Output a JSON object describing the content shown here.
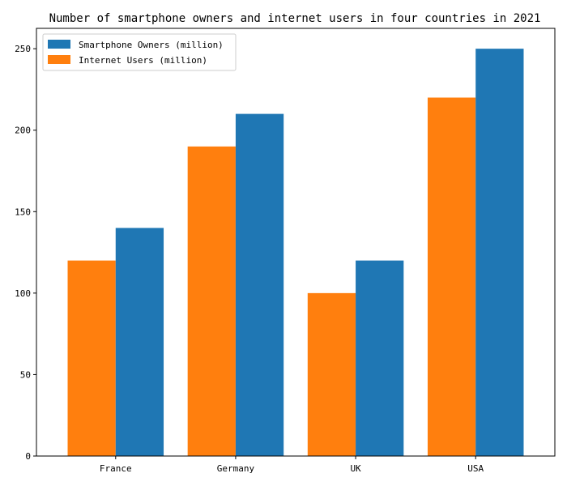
{
  "chart_data": {
    "type": "bar",
    "title": "Number of smartphone owners and internet users in four countries in 2021",
    "xlabel": "",
    "ylabel": "",
    "categories": [
      "France",
      "Germany",
      "UK",
      "USA"
    ],
    "series": [
      {
        "name": "Internet Users (million)",
        "values": [
          120,
          190,
          100,
          220
        ],
        "color": "#ff7f0e"
      },
      {
        "name": "Smartphone Owners (million)",
        "values": [
          140,
          210,
          120,
          250
        ],
        "color": "#1f77b4"
      }
    ],
    "legend_order": [
      "Smartphone Owners (million)",
      "Internet Users (million)"
    ],
    "legend_position": "top-left",
    "yticks": [
      0,
      50,
      100,
      150,
      200,
      250
    ],
    "ylim": [
      0,
      262.5
    ],
    "grid": false
  }
}
